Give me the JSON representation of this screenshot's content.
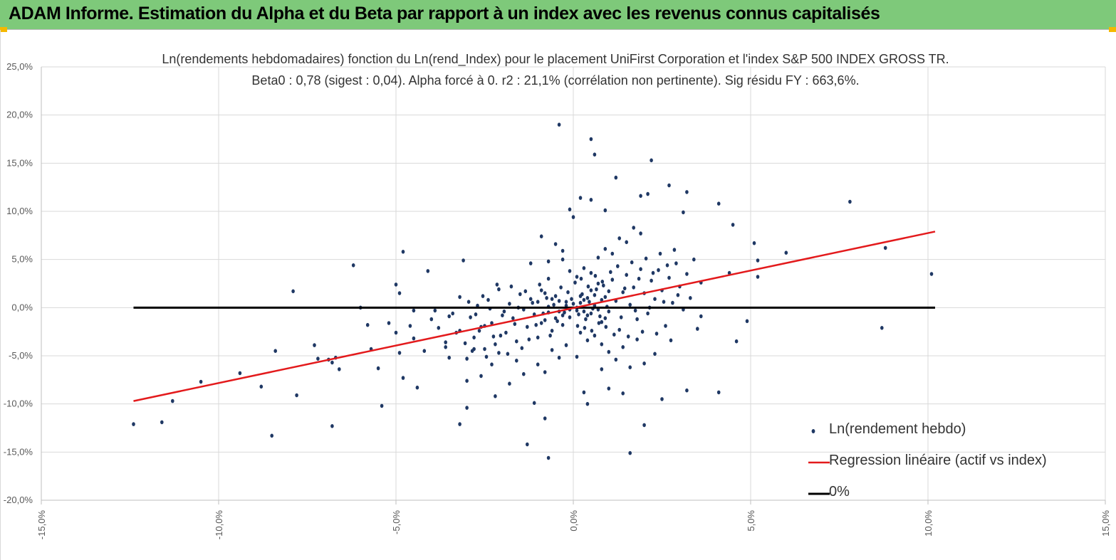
{
  "header": {
    "title": "ADAM Informe. Estimation du Alpha et du Beta par rapport à un index avec les revenus connus capitalisés"
  },
  "colors": {
    "banner": "#7ec97a",
    "points": "#1f3864",
    "regression": "#e31a1c",
    "zero_line": "#000000",
    "grid": "#d9d9d9"
  },
  "chart_data": {
    "type": "scatter",
    "title_line1": "Ln(rendements hebdomadaires) fonction du Ln(rend_Index) pour le placement UniFirst Corporation et l'index S&P 500 INDEX GROSS TR.",
    "title_line2": "Beta0 : 0,78 (sigest : 0,04). Alpha forcé à 0. r2 : 21,1% (corrélation non pertinente). Sig résidu FY : 663,6%.",
    "x_tick_labels": [
      "-15,0%",
      "-10,0%",
      "-5,0%",
      "0,0%",
      "5,0%",
      "10,0%",
      "15,0%"
    ],
    "x_ticks": [
      -15,
      -10,
      -5,
      0,
      5,
      10,
      15
    ],
    "y_tick_labels": [
      "25,0%",
      "20,0%",
      "15,0%",
      "10,0%",
      "5,0%",
      "0,0%",
      "-5,0%",
      "-10,0%",
      "-15,0%",
      "-20,0%"
    ],
    "y_ticks": [
      25,
      20,
      15,
      10,
      5,
      0,
      -5,
      -10,
      -15,
      -20
    ],
    "xlim": [
      -15,
      15
    ],
    "ylim": [
      -20,
      25
    ],
    "beta": 0.78,
    "legend": [
      {
        "label": "Ln(rendement hebdo)",
        "kind": "points"
      },
      {
        "label": "Regression linéaire (actif vs index)",
        "kind": "regression"
      },
      {
        "label": "0%",
        "kind": "zero"
      }
    ],
    "series": [
      {
        "name": "Ln(rendement hebdo)",
        "kind": "scatter",
        "points": [
          [
            -12.4,
            -12.1
          ],
          [
            -11.6,
            -11.9
          ],
          [
            -11.3,
            -9.7
          ],
          [
            -10.5,
            -7.7
          ],
          [
            -9.4,
            -6.8
          ],
          [
            -8.8,
            -8.2
          ],
          [
            -8.5,
            -13.3
          ],
          [
            -8.4,
            -4.5
          ],
          [
            -7.9,
            1.7
          ],
          [
            -7.8,
            -9.1
          ],
          [
            -7.3,
            -3.9
          ],
          [
            -7.2,
            -5.3
          ],
          [
            -6.9,
            -5.4
          ],
          [
            -6.8,
            -5.7
          ],
          [
            -6.8,
            -12.3
          ],
          [
            -6.7,
            -5.2
          ],
          [
            -6.6,
            -6.4
          ],
          [
            -6.2,
            4.4
          ],
          [
            -6.0,
            0.0
          ],
          [
            -5.8,
            -1.8
          ],
          [
            -5.7,
            -4.3
          ],
          [
            -5.5,
            -6.3
          ],
          [
            -5.4,
            -10.2
          ],
          [
            -5.2,
            -1.6
          ],
          [
            -5.0,
            -2.6
          ],
          [
            -5.0,
            2.4
          ],
          [
            -4.9,
            1.5
          ],
          [
            -4.8,
            -7.3
          ],
          [
            -4.9,
            -4.7
          ],
          [
            -4.8,
            5.8
          ],
          [
            -4.6,
            -1.9
          ],
          [
            -4.5,
            -3.2
          ],
          [
            -4.5,
            -0.3
          ],
          [
            -4.4,
            -8.3
          ],
          [
            -4.2,
            -4.5
          ],
          [
            -4.1,
            3.8
          ],
          [
            -4.0,
            -1.2
          ],
          [
            -3.9,
            -0.3
          ],
          [
            -3.8,
            -2.1
          ],
          [
            -3.6,
            -3.6
          ],
          [
            -3.5,
            -5.2
          ],
          [
            -3.5,
            -0.9
          ],
          [
            -3.3,
            -2.6
          ],
          [
            -3.2,
            -12.1
          ],
          [
            -3.2,
            1.1
          ],
          [
            -3.0,
            -10.4
          ],
          [
            -3.0,
            -7.6
          ],
          [
            -3.1,
            4.9
          ],
          [
            -2.8,
            -4.3
          ],
          [
            -2.6,
            -7.1
          ],
          [
            -2.5,
            -1.9
          ],
          [
            -2.3,
            -5.9
          ],
          [
            -2.2,
            -9.2
          ],
          [
            -2.1,
            -4.7
          ],
          [
            -1.8,
            -7.9
          ],
          [
            -1.6,
            -5.5
          ],
          [
            -1.4,
            -6.9
          ],
          [
            -1.3,
            -14.2
          ],
          [
            -1.2,
            4.6
          ],
          [
            -1.1,
            -9.9
          ],
          [
            -0.8,
            -11.5
          ],
          [
            -0.7,
            -15.6
          ],
          [
            -0.7,
            4.8
          ],
          [
            -0.3,
            5.9
          ],
          [
            -0.1,
            10.2
          ],
          [
            -0.4,
            19.0
          ],
          [
            0.0,
            9.4
          ],
          [
            0.1,
            -5.1
          ],
          [
            0.2,
            11.4
          ],
          [
            0.3,
            -8.8
          ],
          [
            0.4,
            -10.0
          ],
          [
            0.5,
            11.2
          ],
          [
            0.5,
            17.5
          ],
          [
            0.6,
            15.9
          ],
          [
            0.8,
            -6.4
          ],
          [
            0.9,
            10.1
          ],
          [
            1.0,
            -8.4
          ],
          [
            1.2,
            13.5
          ],
          [
            1.4,
            -8.9
          ],
          [
            1.6,
            -15.1
          ],
          [
            1.9,
            11.6
          ],
          [
            2.0,
            -12.2
          ],
          [
            2.1,
            11.8
          ],
          [
            2.2,
            15.3
          ],
          [
            2.3,
            -4.8
          ],
          [
            2.5,
            -9.5
          ],
          [
            2.7,
            12.7
          ],
          [
            3.2,
            -8.6
          ],
          [
            3.2,
            12.0
          ],
          [
            3.1,
            9.9
          ],
          [
            3.6,
            -0.9
          ],
          [
            4.1,
            -8.8
          ],
          [
            4.1,
            10.8
          ],
          [
            4.4,
            3.6
          ],
          [
            4.5,
            8.6
          ],
          [
            4.6,
            -3.5
          ],
          [
            4.9,
            -1.4
          ],
          [
            5.1,
            6.7
          ],
          [
            5.2,
            4.9
          ],
          [
            5.2,
            3.2
          ],
          [
            6.0,
            5.7
          ],
          [
            7.8,
            11.0
          ],
          [
            8.7,
            -2.1
          ],
          [
            8.8,
            6.2
          ],
          [
            10.1,
            3.5
          ],
          [
            0.0,
            0.4
          ],
          [
            0.1,
            -0.3
          ],
          [
            0.2,
            1.2
          ],
          [
            -0.1,
            -1.0
          ],
          [
            0.3,
            0.8
          ],
          [
            0.4,
            -0.8
          ],
          [
            0.5,
            1.8
          ],
          [
            -0.2,
            0.6
          ],
          [
            -0.3,
            -1.8
          ],
          [
            0.6,
            0.2
          ],
          [
            0.7,
            2.5
          ],
          [
            0.8,
            -1.5
          ],
          [
            0.9,
            1.1
          ],
          [
            1.0,
            -0.4
          ],
          [
            1.1,
            2.9
          ],
          [
            1.2,
            0.7
          ],
          [
            1.3,
            -2.3
          ],
          [
            1.4,
            1.6
          ],
          [
            1.5,
            3.4
          ],
          [
            1.6,
            0.3
          ],
          [
            1.7,
            2.1
          ],
          [
            1.8,
            -1.2
          ],
          [
            1.9,
            4.0
          ],
          [
            2.0,
            1.5
          ],
          [
            2.1,
            -0.6
          ],
          [
            2.2,
            2.8
          ],
          [
            2.3,
            0.9
          ],
          [
            2.4,
            3.9
          ],
          [
            2.5,
            1.8
          ],
          [
            2.6,
            -1.9
          ],
          [
            2.7,
            3.1
          ],
          [
            2.8,
            0.5
          ],
          [
            2.9,
            4.6
          ],
          [
            3.0,
            2.2
          ],
          [
            3.1,
            -0.2
          ],
          [
            3.2,
            3.5
          ],
          [
            3.3,
            1.0
          ],
          [
            3.4,
            5.0
          ],
          [
            3.5,
            -2.2
          ],
          [
            3.6,
            2.6
          ],
          [
            -0.4,
            -0.4
          ],
          [
            -0.5,
            1.2
          ],
          [
            -0.6,
            -2.4
          ],
          [
            -0.7,
            0.1
          ],
          [
            -0.8,
            -1.3
          ],
          [
            -0.9,
            1.8
          ],
          [
            -1.0,
            -3.1
          ],
          [
            -1.1,
            -0.7
          ],
          [
            -1.2,
            0.9
          ],
          [
            -1.3,
            -2.0
          ],
          [
            -1.4,
            -0.2
          ],
          [
            -1.5,
            1.4
          ],
          [
            -1.6,
            -3.5
          ],
          [
            -1.7,
            -1.1
          ],
          [
            -1.8,
            0.4
          ],
          [
            -1.9,
            -2.6
          ],
          [
            -2.0,
            -0.8
          ],
          [
            -2.1,
            1.9
          ],
          [
            -2.2,
            -3.8
          ],
          [
            -2.3,
            -1.6
          ],
          [
            -2.4,
            0.8
          ],
          [
            -2.5,
            -4.3
          ],
          [
            -2.6,
            -2.0
          ],
          [
            -2.7,
            0.2
          ],
          [
            -2.8,
            -3.1
          ],
          [
            -2.9,
            -1.0
          ],
          [
            -3.0,
            -5.3
          ],
          [
            -3.2,
            -2.4
          ],
          [
            -3.4,
            -0.6
          ],
          [
            -3.6,
            -4.1
          ],
          [
            0.1,
            3.2
          ],
          [
            0.2,
            -2.6
          ],
          [
            0.3,
            4.1
          ],
          [
            0.4,
            -3.4
          ],
          [
            0.5,
            3.6
          ],
          [
            0.6,
            -2.9
          ],
          [
            0.7,
            5.2
          ],
          [
            0.8,
            -3.8
          ],
          [
            0.9,
            6.1
          ],
          [
            1.0,
            -4.6
          ],
          [
            1.1,
            5.6
          ],
          [
            1.2,
            -5.4
          ],
          [
            1.3,
            7.2
          ],
          [
            1.4,
            -4.1
          ],
          [
            1.5,
            6.8
          ],
          [
            1.6,
            -6.2
          ],
          [
            1.7,
            8.3
          ],
          [
            1.8,
            -3.3
          ],
          [
            1.9,
            7.7
          ],
          [
            2.0,
            -5.8
          ],
          [
            -0.1,
            3.8
          ],
          [
            -0.2,
            -3.9
          ],
          [
            -0.3,
            5.0
          ],
          [
            -0.4,
            -5.2
          ],
          [
            -0.5,
            6.6
          ],
          [
            -0.6,
            -4.4
          ],
          [
            -0.7,
            3.0
          ],
          [
            -0.8,
            -6.7
          ],
          [
            -0.9,
            7.4
          ],
          [
            -1.0,
            -5.9
          ],
          [
            -0.05,
            0.9
          ],
          [
            0.15,
            -0.7
          ],
          [
            0.25,
            1.4
          ],
          [
            0.35,
            -1.2
          ],
          [
            0.45,
            0.6
          ],
          [
            0.55,
            -0.1
          ],
          [
            0.65,
            1.9
          ],
          [
            0.75,
            -0.9
          ],
          [
            0.85,
            2.3
          ],
          [
            0.95,
            0.1
          ],
          [
            -0.15,
            1.6
          ],
          [
            -0.25,
            -0.5
          ],
          [
            -0.35,
            2.1
          ],
          [
            -0.45,
            -1.4
          ],
          [
            -0.55,
            0.3
          ],
          [
            -0.65,
            -2.9
          ],
          [
            -0.75,
            1.0
          ],
          [
            -0.85,
            -0.6
          ],
          [
            -0.95,
            2.4
          ],
          [
            -1.05,
            -1.8
          ],
          [
            0.05,
            2.6
          ],
          [
            0.12,
            -1.9
          ],
          [
            0.22,
            3.0
          ],
          [
            0.32,
            -2.1
          ],
          [
            0.42,
            2.2
          ],
          [
            0.52,
            -2.4
          ],
          [
            0.62,
            3.3
          ],
          [
            0.72,
            -1.6
          ],
          [
            0.82,
            2.7
          ],
          [
            0.92,
            -2.0
          ],
          [
            1.05,
            3.7
          ],
          [
            1.15,
            -2.8
          ],
          [
            1.25,
            4.3
          ],
          [
            1.35,
            -1.0
          ],
          [
            1.45,
            2.0
          ],
          [
            1.55,
            -3.0
          ],
          [
            1.65,
            4.7
          ],
          [
            1.75,
            -0.3
          ],
          [
            1.85,
            3.0
          ],
          [
            1.95,
            -2.5
          ],
          [
            2.05,
            5.1
          ],
          [
            2.15,
            0.0
          ],
          [
            2.25,
            3.6
          ],
          [
            2.35,
            -2.7
          ],
          [
            2.45,
            5.6
          ],
          [
            2.55,
            0.6
          ],
          [
            2.65,
            4.4
          ],
          [
            2.75,
            -3.4
          ],
          [
            2.85,
            6.0
          ],
          [
            2.95,
            1.3
          ],
          [
            -1.15,
            0.5
          ],
          [
            -1.25,
            -3.3
          ],
          [
            -1.35,
            1.7
          ],
          [
            -1.45,
            -4.2
          ],
          [
            -1.55,
            0.0
          ],
          [
            -1.65,
            -1.7
          ],
          [
            -1.75,
            2.2
          ],
          [
            -1.85,
            -4.8
          ],
          [
            -1.95,
            -0.4
          ],
          [
            -2.05,
            -2.9
          ],
          [
            -2.15,
            2.4
          ],
          [
            -2.25,
            -3.0
          ],
          [
            -2.35,
            -0.1
          ],
          [
            -2.45,
            -5.1
          ],
          [
            -2.55,
            1.2
          ],
          [
            -2.65,
            -2.4
          ],
          [
            -2.75,
            -0.7
          ],
          [
            -2.85,
            -4.5
          ],
          [
            -2.95,
            0.6
          ],
          [
            -3.05,
            -3.7
          ],
          [
            0.1,
            0.0
          ],
          [
            0.2,
            0.5
          ],
          [
            0.3,
            -0.4
          ],
          [
            0.4,
            1.0
          ],
          [
            0.5,
            -0.6
          ],
          [
            0.6,
            1.3
          ],
          [
            0.7,
            -0.2
          ],
          [
            0.8,
            0.8
          ],
          [
            0.9,
            -1.1
          ],
          [
            1.0,
            1.7
          ],
          [
            -0.1,
            -0.2
          ],
          [
            -0.2,
            0.2
          ],
          [
            -0.3,
            -0.8
          ],
          [
            -0.4,
            0.7
          ],
          [
            -0.5,
            -1.1
          ],
          [
            -0.6,
            0.9
          ],
          [
            -0.7,
            -0.5
          ],
          [
            -0.8,
            1.5
          ],
          [
            -0.9,
            -1.6
          ],
          [
            -1.0,
            0.6
          ]
        ]
      },
      {
        "name": "Regression linéaire (actif vs index)",
        "kind": "line",
        "points": [
          [
            -12.4,
            -9.7
          ],
          [
            10.2,
            7.9
          ]
        ]
      },
      {
        "name": "0%",
        "kind": "line",
        "points": [
          [
            -12.4,
            0.0
          ],
          [
            10.2,
            0.0
          ]
        ]
      }
    ]
  }
}
